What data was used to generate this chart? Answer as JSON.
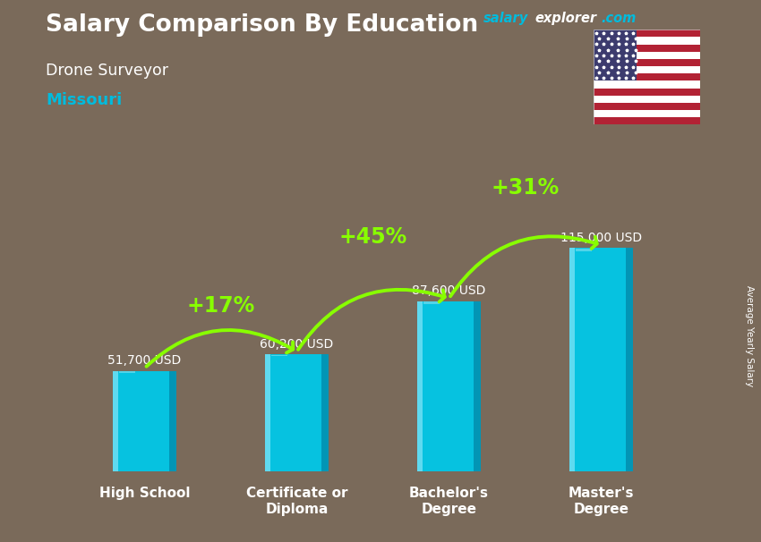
{
  "title": "Salary Comparison By Education",
  "subtitle": "Drone Surveyor",
  "location": "Missouri",
  "categories": [
    "High School",
    "Certificate or\nDiploma",
    "Bachelor's\nDegree",
    "Master's\nDegree"
  ],
  "values": [
    51700,
    60200,
    87600,
    115000
  ],
  "value_labels": [
    "51,700 USD",
    "60,200 USD",
    "87,600 USD",
    "115,000 USD"
  ],
  "pct_changes": [
    "+17%",
    "+45%",
    "+31%"
  ],
  "bar_color": "#00c8e8",
  "bar_color_light": "#55ddf5",
  "bar_color_dark": "#0099bb",
  "bg_color": "#7a6a5a",
  "title_color": "#ffffff",
  "subtitle_color": "#ffffff",
  "location_color": "#00bbdd",
  "value_color": "#ffffff",
  "pct_color": "#88ff00",
  "arrow_color": "#88ff00",
  "ylabel_text": "Average Yearly Salary",
  "brand_salary": "salary",
  "brand_explorer": "explorer",
  "brand_com": ".com",
  "brand_color_salary": "#00bbdd",
  "brand_color_explorer": "#ffffff",
  "brand_color_com": "#00bbdd",
  "ylim": [
    0,
    145000
  ],
  "bar_width": 0.42
}
